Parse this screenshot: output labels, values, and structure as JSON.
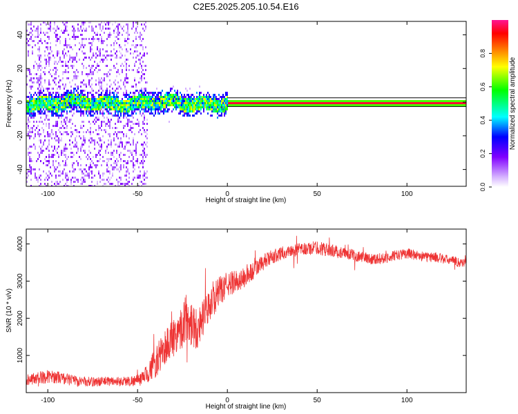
{
  "figure_title": "C2E5.2025.205.10.54.E16",
  "chart_data": [
    {
      "type": "heatmap",
      "xlabel": "Height of straight line (km)",
      "ylabel": "Frequency (Hz)",
      "xlim": [
        -112,
        133
      ],
      "ylim": [
        -50,
        48
      ],
      "x_ticks": [
        -100,
        -50,
        0,
        50,
        100
      ],
      "y_ticks": [
        -40,
        -20,
        0,
        20,
        40
      ],
      "colorbar": {
        "label": "Normalized spectral amplitude",
        "range": [
          0,
          1
        ],
        "ticks": [
          0,
          0.2,
          0.4,
          0.6,
          0.8
        ],
        "tick_labels": [
          "0.0",
          "0.2",
          "0.4",
          "0.6",
          "0.8"
        ],
        "colors": [
          "#ffffff",
          "#d6b3ff",
          "#8000ff",
          "#0000ff",
          "#00ffff",
          "#00ff00",
          "#ffff00",
          "#ff8000",
          "#ff0000",
          "#ff1493"
        ]
      },
      "features": {
        "strong_line_freq_hz": 0,
        "strong_line_start_km": 0,
        "noisy_region_km": [
          -112,
          -45
        ],
        "band_halfwidth_hz": 3
      },
      "grid": false
    },
    {
      "type": "line",
      "xlabel": "Height of straight line (km)",
      "ylabel": "SNR (10 * v/v)",
      "xlim": [
        -112,
        133
      ],
      "ylim": [
        0,
        4400
      ],
      "x_ticks": [
        -100,
        -50,
        0,
        50,
        100
      ],
      "y_ticks": [
        1000,
        2000,
        3000,
        4000
      ],
      "series": [
        {
          "color": "#ee3333",
          "x": [
            -112,
            -105,
            -100,
            -95,
            -90,
            -85,
            -80,
            -75,
            -70,
            -65,
            -60,
            -55,
            -50,
            -47,
            -45,
            -42,
            -40,
            -35,
            -30,
            -25,
            -22,
            -20,
            -17,
            -15,
            -10,
            -5,
            0,
            5,
            10,
            15,
            20,
            25,
            30,
            35,
            40,
            45,
            50,
            55,
            60,
            65,
            70,
            75,
            80,
            85,
            90,
            95,
            100,
            105,
            110,
            115,
            120,
            125,
            130,
            133
          ],
          "values": [
            350,
            400,
            430,
            420,
            370,
            320,
            300,
            290,
            300,
            310,
            300,
            310,
            330,
            380,
            500,
            700,
            800,
            1200,
            1500,
            1800,
            2100,
            1900,
            1700,
            1900,
            2300,
            2700,
            2900,
            3000,
            3100,
            3300,
            3500,
            3650,
            3750,
            3800,
            3850,
            3870,
            3900,
            3850,
            3800,
            3750,
            3700,
            3650,
            3600,
            3600,
            3650,
            3700,
            3750,
            3700,
            3650,
            3650,
            3600,
            3550,
            3500,
            3500
          ],
          "noise_amplitude": [
            150,
            170,
            180,
            170,
            160,
            150,
            140,
            130,
            130,
            130,
            130,
            140,
            160,
            200,
            260,
            350,
            420,
            500,
            550,
            600,
            700,
            650,
            600,
            500,
            450,
            400,
            350,
            300,
            280,
            250,
            220,
            200,
            180,
            170,
            170,
            180,
            190,
            180,
            170,
            160,
            150,
            150,
            150,
            150,
            150,
            140,
            140,
            140,
            140,
            140,
            130,
            130,
            130,
            130
          ]
        }
      ],
      "grid": false
    }
  ]
}
